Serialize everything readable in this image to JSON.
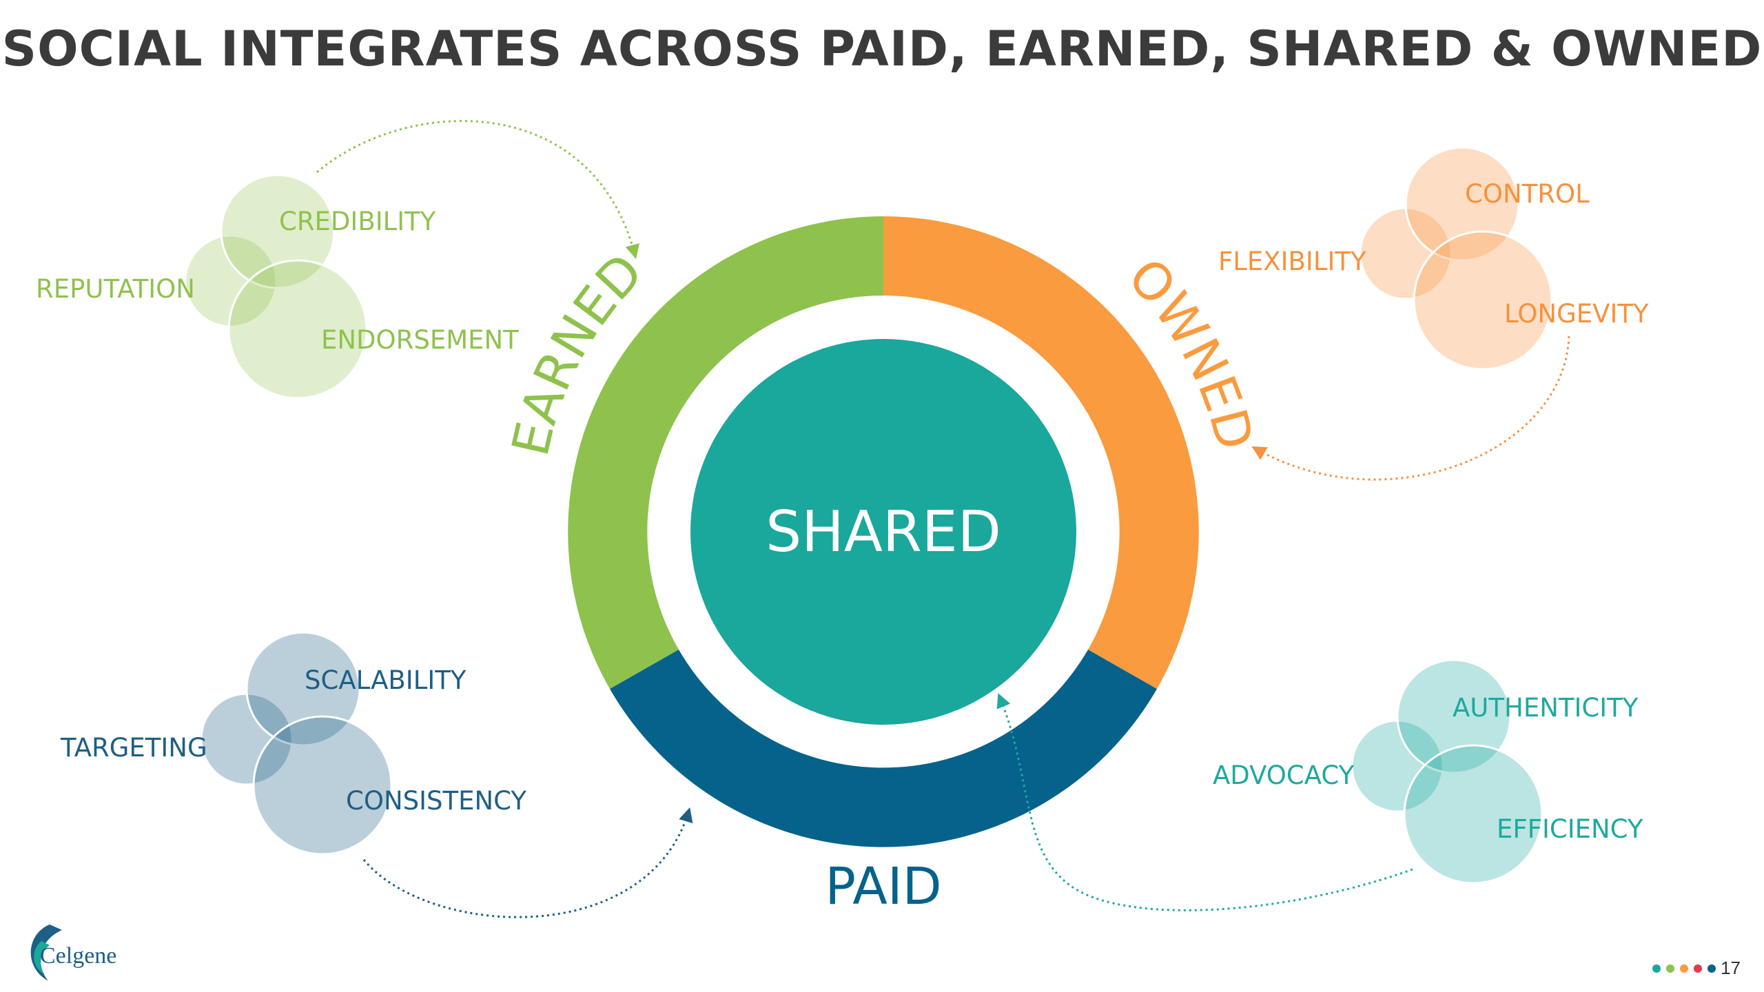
{
  "title": "SOCIAL INTEGRATES ACROSS PAID, EARNED, SHARED & OWNED",
  "center": {
    "label": "SHARED",
    "color": "#1aa79c"
  },
  "ring": {
    "earned": {
      "label": "EARNED",
      "color": "#8ec24c"
    },
    "owned": {
      "label": "OWNED",
      "color": "#f99b3e"
    },
    "paid": {
      "label": "PAID",
      "color": "#05628b"
    }
  },
  "clusters": {
    "earned": {
      "color": "#8ec24c",
      "items": [
        "CREDIBILITY",
        "REPUTATION",
        "ENDORSEMENT"
      ]
    },
    "owned": {
      "color": "#f7913c",
      "items": [
        "CONTROL",
        "FLEXIBILITY",
        "LONGEVITY"
      ]
    },
    "paid": {
      "color": "#1d5f85",
      "items": [
        "SCALABILITY",
        "TARGETING",
        "CONSISTENCY"
      ]
    },
    "shared": {
      "color": "#1ea99e",
      "items": [
        "AUTHENTICITY",
        "ADVOCACY",
        "EFFICIENCY"
      ]
    }
  },
  "logo": {
    "text": "Celgene"
  },
  "page_number": "17",
  "dots": [
    "#1aa79c",
    "#8ec24c",
    "#f99b3e",
    "#e8364c",
    "#05628b"
  ]
}
